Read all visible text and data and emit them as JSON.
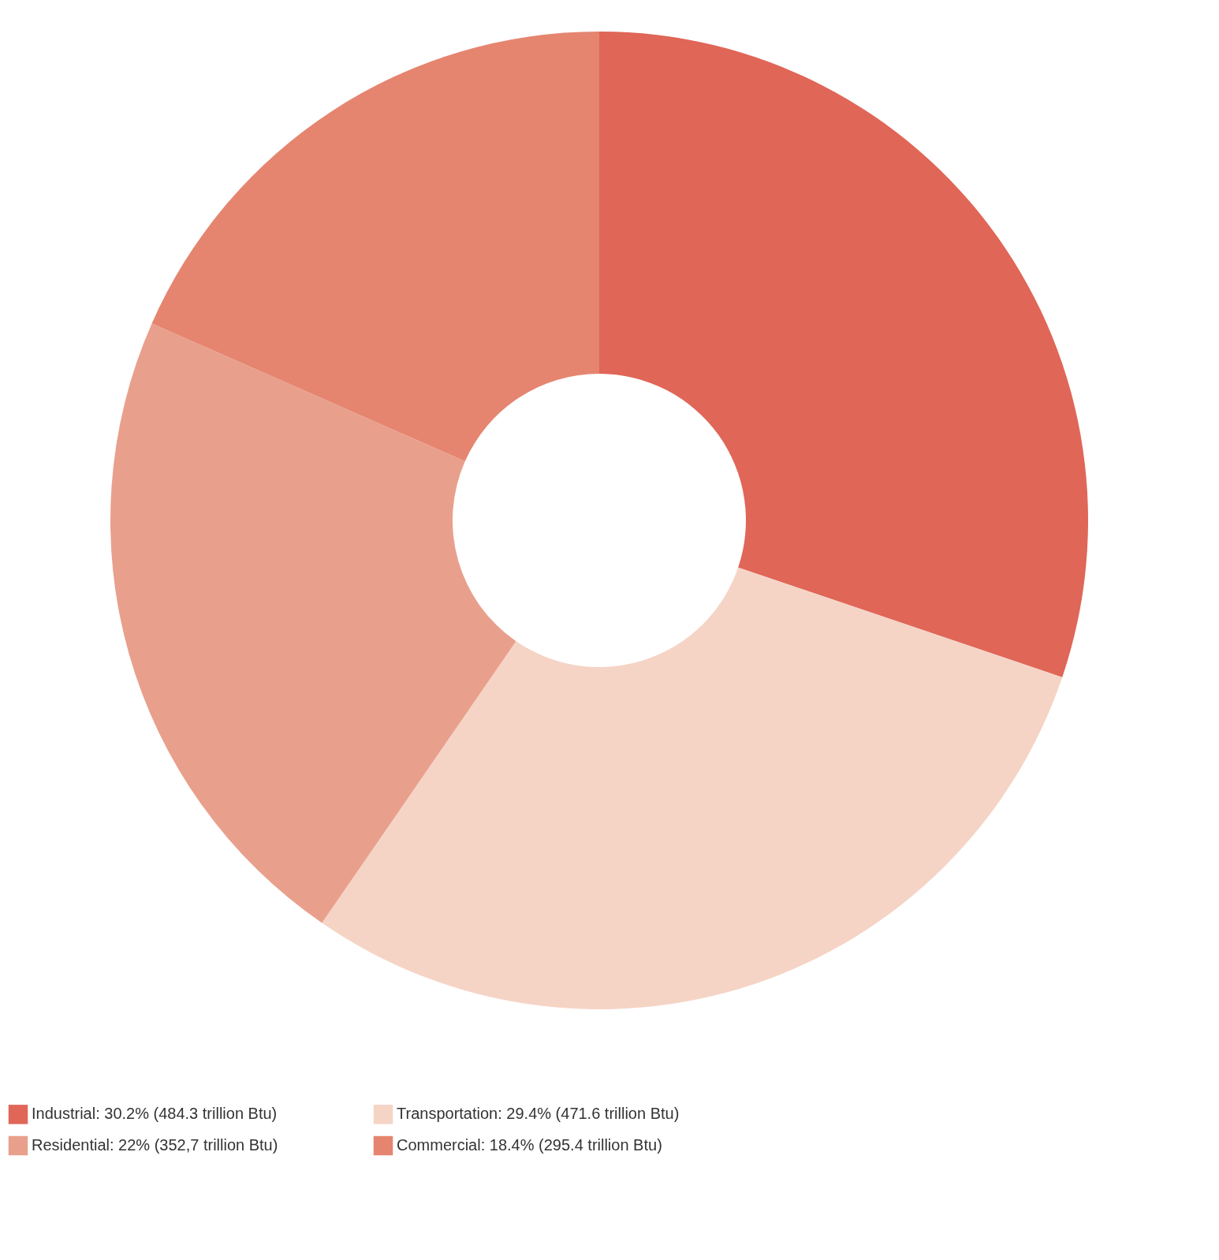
{
  "chart_data": {
    "type": "donut",
    "categories": [
      "Industrial: 30.2% (484.3 trillion Btu)",
      "Transportation: 29.4% (471.6 trillion Btu)",
      "Residential: 22% (352,7 trillion Btu)",
      "Commercial: 18.4% (295.4 trillion Btu)"
    ],
    "values": [
      30.2,
      29.4,
      22,
      18.4
    ],
    "colors": [
      "#e06658",
      "#f5d4c6",
      "#e8a08c",
      "#e58570"
    ],
    "legend": "bottom"
  }
}
